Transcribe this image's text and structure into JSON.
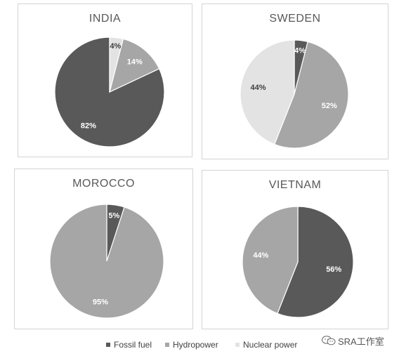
{
  "colors": {
    "fossil": "#595959",
    "hydro": "#a6a6a6",
    "nuclear": "#e3e3e3"
  },
  "chart_data": [
    {
      "type": "pie",
      "title": "INDIA",
      "series": [
        {
          "name": "Fossil fuel",
          "value": 82,
          "label": "82%"
        },
        {
          "name": "Hydropower",
          "value": 14,
          "label": "14%"
        },
        {
          "name": "Nuclear power",
          "value": 4,
          "label": "4%"
        }
      ]
    },
    {
      "type": "pie",
      "title": "SWEDEN",
      "series": [
        {
          "name": "Fossil fuel",
          "value": 4,
          "label": "4%"
        },
        {
          "name": "Hydropower",
          "value": 52,
          "label": "52%"
        },
        {
          "name": "Nuclear power",
          "value": 44,
          "label": "44%"
        }
      ]
    },
    {
      "type": "pie",
      "title": "MOROCCO",
      "series": [
        {
          "name": "Fossil fuel",
          "value": 5,
          "label": "5%"
        },
        {
          "name": "Hydropower",
          "value": 95,
          "label": "95%"
        }
      ]
    },
    {
      "type": "pie",
      "title": "VIETNAM",
      "series": [
        {
          "name": "Fossil fuel",
          "value": 56,
          "label": "56%"
        },
        {
          "name": "Hydropower",
          "value": 44,
          "label": "44%"
        }
      ]
    }
  ],
  "legend": {
    "position": "bottom",
    "items": [
      "Fossil fuel",
      "Hydropower",
      "Nuclear power"
    ]
  },
  "watermark": {
    "text": "SRA工作室",
    "icon": "wechat-icon"
  }
}
